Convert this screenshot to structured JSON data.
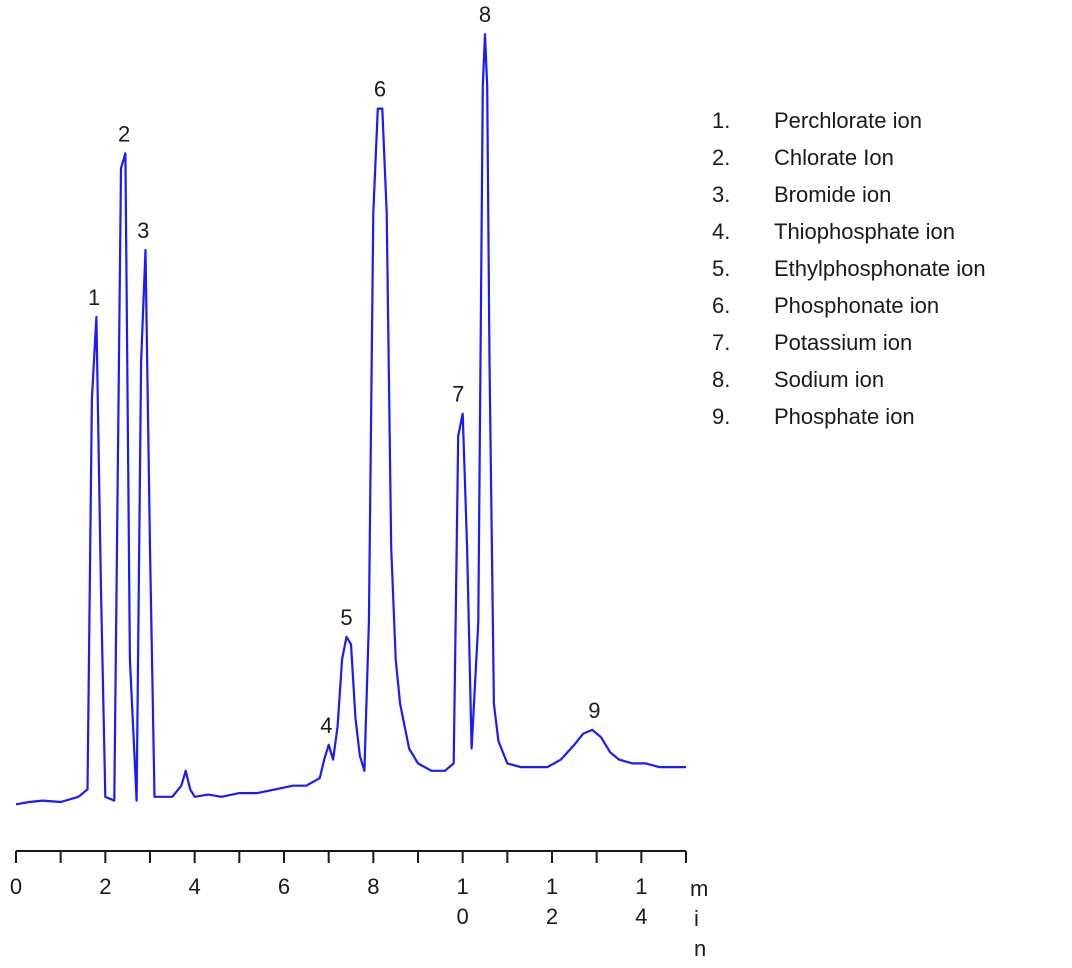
{
  "chart_data": {
    "type": "line",
    "xlim": [
      0,
      15
    ],
    "ylim": [
      0,
      100
    ],
    "x_ticks": [
      0,
      2,
      4,
      6,
      8,
      10,
      12,
      14
    ],
    "x_tick_labels": [
      "0",
      "2",
      "4",
      "6",
      "8",
      "1\n0",
      "1\n2",
      "1\n4"
    ],
    "xlabel": "m\ni\nn",
    "line_color": "#1a1aff",
    "series": [
      {
        "x": [
          0.0,
          0.3,
          0.6,
          1.0,
          1.4,
          1.6,
          1.7,
          1.8,
          1.9,
          2.0,
          2.2,
          2.35,
          2.45,
          2.55,
          2.7,
          2.8,
          2.9,
          3.0,
          3.1,
          3.3,
          3.5,
          3.7,
          3.8,
          3.9,
          4.0,
          4.3,
          4.6,
          5.0,
          5.4,
          5.8,
          6.2,
          6.5,
          6.8,
          6.9,
          7.0,
          7.1,
          7.2,
          7.3,
          7.4,
          7.5,
          7.6,
          7.7,
          7.8,
          7.9,
          8.0,
          8.1,
          8.2,
          8.3,
          8.4,
          8.5,
          8.6,
          8.8,
          9.0,
          9.3,
          9.6,
          9.8,
          9.9,
          10.0,
          10.1,
          10.2,
          10.35,
          10.45,
          10.5,
          10.55,
          10.6,
          10.7,
          10.8,
          11.0,
          11.3,
          11.6,
          11.9,
          12.2,
          12.5,
          12.7,
          12.9,
          13.1,
          13.3,
          13.5,
          13.8,
          14.1,
          14.4,
          14.7,
          15.0
        ],
        "y": [
          0.5,
          0.8,
          1.0,
          0.8,
          1.5,
          2.5,
          55,
          66,
          30,
          1.5,
          1.0,
          86,
          88,
          20,
          1.0,
          60,
          75,
          35,
          1.5,
          1.5,
          1.5,
          3.0,
          5.0,
          2.5,
          1.5,
          1.8,
          1.5,
          2.0,
          2.0,
          2.5,
          3.0,
          3.0,
          4.0,
          6.5,
          8.5,
          6.5,
          11,
          20,
          23,
          22,
          12,
          7,
          5,
          25,
          80,
          94,
          94,
          80,
          35,
          20,
          14,
          8,
          6,
          5.0,
          5.0,
          6.0,
          50,
          53,
          35,
          8.0,
          25,
          97,
          104,
          97,
          60,
          14,
          9,
          6,
          5.5,
          5.5,
          5.5,
          6.5,
          8.5,
          10,
          10.5,
          9.5,
          7.5,
          6.5,
          6.0,
          6.0,
          5.5,
          5.5,
          5.5
        ]
      }
    ],
    "peak_labels": [
      {
        "label": "1",
        "x": 1.75,
        "y": 66
      },
      {
        "label": "2",
        "x": 2.42,
        "y": 88
      },
      {
        "label": "3",
        "x": 2.85,
        "y": 75
      },
      {
        "label": "4",
        "x": 6.95,
        "y": 8.5
      },
      {
        "label": "5",
        "x": 7.4,
        "y": 23
      },
      {
        "label": "6",
        "x": 8.15,
        "y": 94
      },
      {
        "label": "7",
        "x": 9.9,
        "y": 53
      },
      {
        "label": "8",
        "x": 10.5,
        "y": 104
      },
      {
        "label": "9",
        "x": 12.95,
        "y": 10.5
      }
    ],
    "legend": [
      {
        "num": "1.",
        "name": "Perchlorate ion"
      },
      {
        "num": "2.",
        "name": "Chlorate Ion"
      },
      {
        "num": "3.",
        "name": "Bromide ion"
      },
      {
        "num": "4.",
        "name": "Thiophosphate ion"
      },
      {
        "num": "5.",
        "name": "Ethylphosphonate ion"
      },
      {
        "num": "6.",
        "name": "Phosphonate ion"
      },
      {
        "num": "7.",
        "name": "Potassium ion"
      },
      {
        "num": "8.",
        "name": "Sodium ion"
      },
      {
        "num": "9.",
        "name": "Phosphate ion"
      }
    ],
    "legend_position": "top-right",
    "grid": false
  }
}
